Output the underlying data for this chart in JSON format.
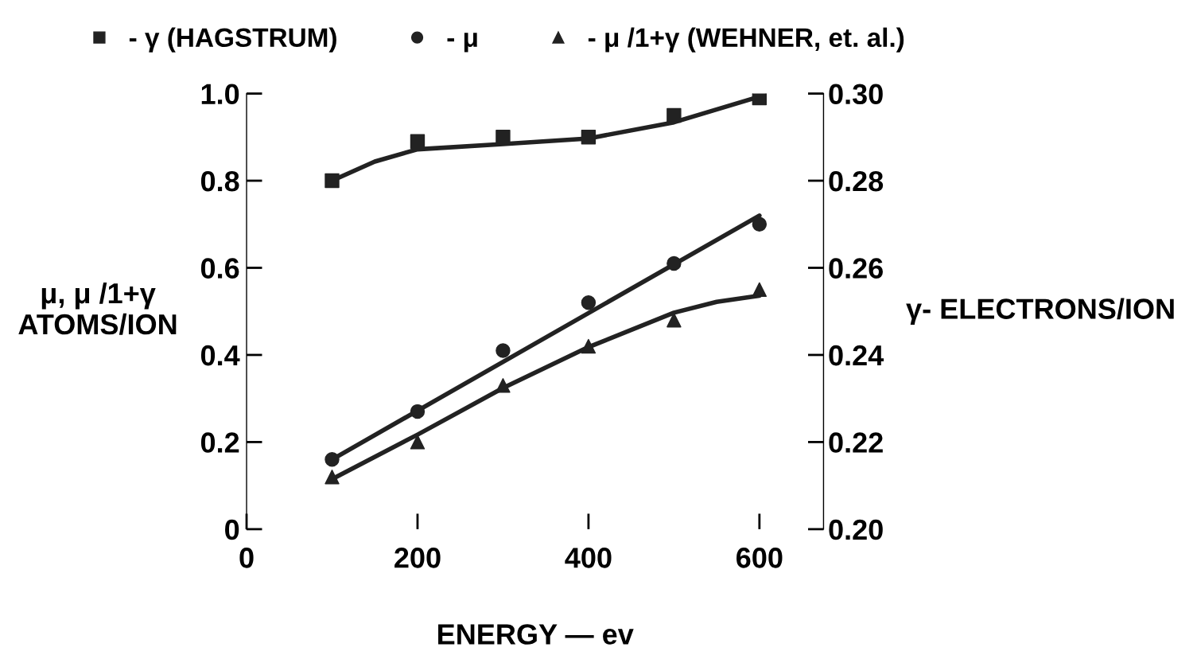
{
  "chart_data": {
    "type": "scatter",
    "xlabel": "ENERGY — ev",
    "ylabel": "μ, μ /1+γ\nATOMS/ION",
    "y2label": "γ- ELECTRONS/ION",
    "xlim": [
      0,
      675
    ],
    "xticks": [
      0,
      200,
      400,
      600
    ],
    "ylim": [
      0,
      1.0
    ],
    "yticks": [
      0,
      0.2,
      0.4,
      0.6,
      0.8,
      {
        "value": 1.0,
        "label": "1.0"
      }
    ],
    "y2lim": [
      0.2,
      0.3
    ],
    "y2ticks": [
      {
        "value": 0.2,
        "label": "0.20"
      },
      0.22,
      0.24,
      0.26,
      0.28,
      {
        "value": 0.3,
        "label": "0.30"
      }
    ],
    "grid": false,
    "legend": "top",
    "series": [
      {
        "name": "- γ (HAGSTRUM)",
        "marker": "square",
        "axis": "y2",
        "color": "#222222",
        "x": [
          100,
          200,
          300,
          400,
          500,
          600
        ],
        "values": [
          0.28,
          0.289,
          0.29,
          0.29,
          0.295,
          0.299
        ]
      },
      {
        "name": "- μ",
        "marker": "circle",
        "color": "#222222",
        "x": [
          100,
          200,
          300,
          400,
          500,
          600
        ],
        "values": [
          0.16,
          0.27,
          0.41,
          0.52,
          0.61,
          0.7
        ]
      },
      {
        "name": "- μ /1+γ (WEHNER, et. al.)",
        "marker": "triangle",
        "color": "#222222",
        "x": [
          100,
          200,
          300,
          400,
          500,
          600
        ],
        "values": [
          0.12,
          0.2,
          0.33,
          0.42,
          0.48,
          0.55
        ]
      },
      {
        "type": "line",
        "axis": "y2",
        "color": "#222222",
        "x": [
          100,
          150,
          200,
          300,
          400,
          500,
          600
        ],
        "values": [
          0.28,
          0.2844,
          0.2872,
          0.2884,
          0.2897,
          0.2934,
          0.2993
        ]
      },
      {
        "type": "line",
        "color": "#222222",
        "x": [
          100,
          600
        ],
        "values": [
          0.16,
          0.72
        ]
      },
      {
        "type": "line",
        "color": "#222222",
        "x": [
          100,
          200,
          300,
          400,
          500,
          550,
          600
        ],
        "values": [
          0.115,
          0.217,
          0.324,
          0.418,
          0.497,
          0.522,
          0.536
        ]
      }
    ]
  }
}
